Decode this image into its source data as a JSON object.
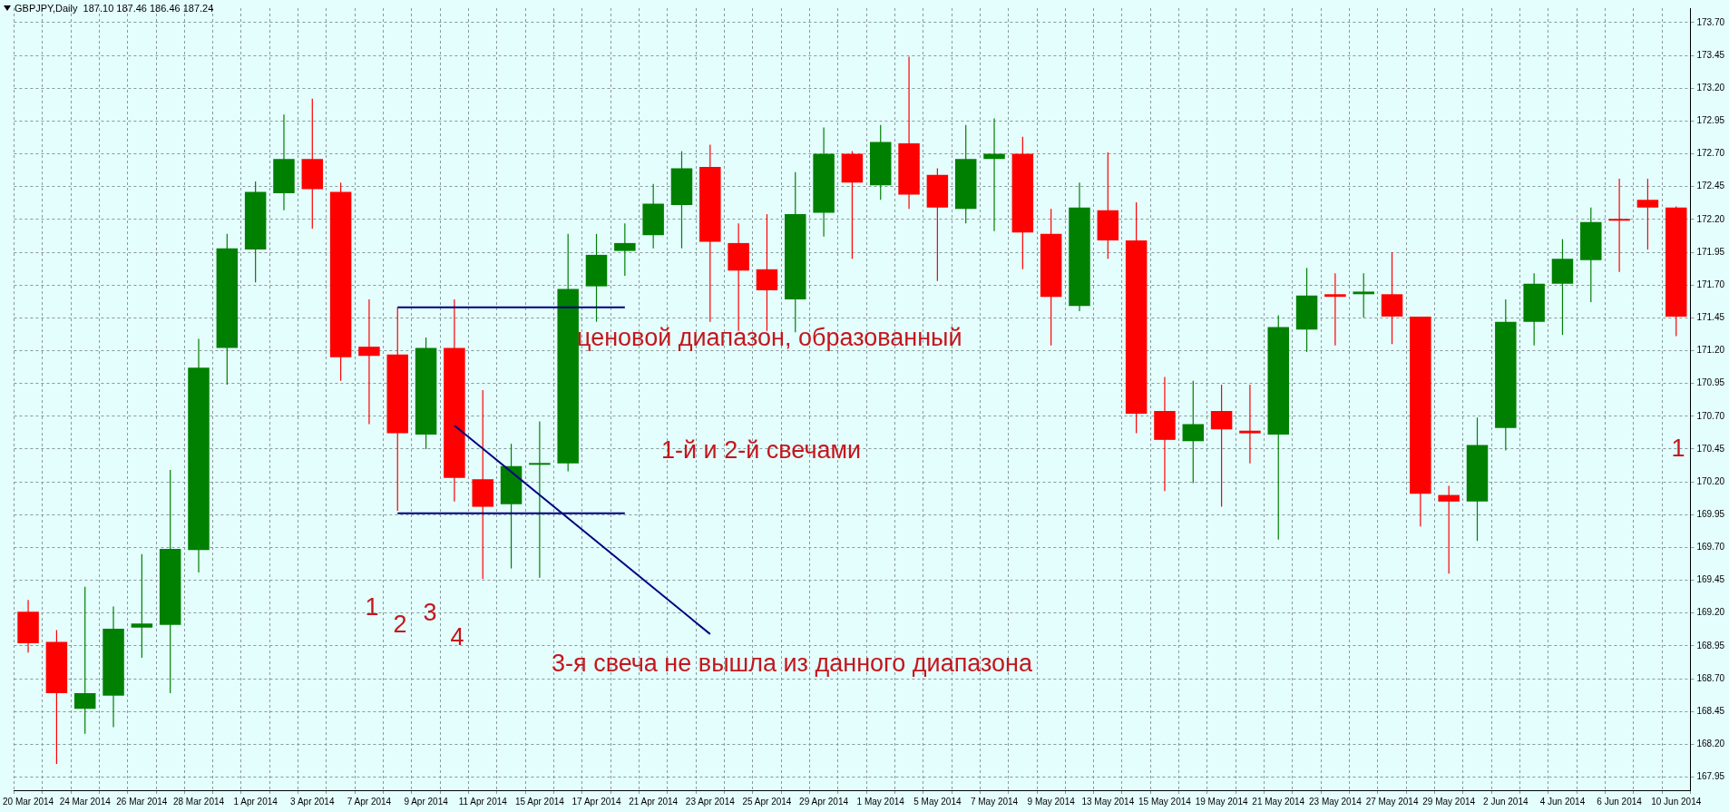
{
  "chart_data": {
    "type": "candlestick",
    "categories": [
      "20 Mar 2014",
      null,
      "24 Mar 2014",
      null,
      "26 Mar 2014",
      null,
      "28 Mar 2014",
      null,
      "1 Apr 2014",
      null,
      "3 Apr 2014",
      null,
      "7 Apr 2014",
      null,
      "9 Apr 2014",
      null,
      "11 Apr 2014",
      null,
      "15 Apr 2014",
      null,
      "17 Apr 2014",
      null,
      "21 Apr 2014",
      null,
      "23 Apr 2014",
      null,
      "25 Apr 2014",
      null,
      "29 Apr 2014",
      null,
      "1 May 2014",
      null,
      "5 May 2014",
      null,
      "7 May 2014",
      null,
      "9 May 2014",
      null,
      "13 May 2014",
      null,
      "15 May 2014",
      null,
      "19 May 2014",
      null,
      "21 May 2014",
      null,
      "23 May 2014",
      null,
      "27 May 2014",
      null,
      "29 May 2014",
      null,
      "2 Jun 2014",
      null,
      "4 Jun 2014",
      null,
      "6 Jun 2014",
      null,
      "10 Jun 2014"
    ],
    "ohlc": [
      [
        169.21,
        169.3,
        168.9,
        168.97
      ],
      [
        168.98,
        169.07,
        168.05,
        168.59
      ],
      [
        168.47,
        169.4,
        168.28,
        168.59
      ],
      [
        168.57,
        169.25,
        168.33,
        169.08
      ],
      [
        169.09,
        169.65,
        168.86,
        169.12
      ],
      [
        169.11,
        170.29,
        168.59,
        169.69
      ],
      [
        169.68,
        171.29,
        169.51,
        171.07
      ],
      [
        171.22,
        172.09,
        170.94,
        171.98
      ],
      [
        171.97,
        172.49,
        171.72,
        172.41
      ],
      [
        172.4,
        173.0,
        172.27,
        172.66
      ],
      [
        172.66,
        173.12,
        172.13,
        172.43
      ],
      [
        172.41,
        172.48,
        170.97,
        171.15
      ],
      [
        171.23,
        171.59,
        170.64,
        171.16
      ],
      [
        171.17,
        171.53,
        169.98,
        170.57
      ],
      [
        170.56,
        171.3,
        170.45,
        171.22
      ],
      [
        171.22,
        171.59,
        170.05,
        170.23
      ],
      [
        170.22,
        170.9,
        169.46,
        170.01
      ],
      [
        170.03,
        170.49,
        169.54,
        170.32
      ],
      [
        170.33,
        170.66,
        169.47,
        170.34
      ],
      [
        170.34,
        172.09,
        170.28,
        171.67
      ],
      [
        171.69,
        172.09,
        171.42,
        171.93
      ],
      [
        171.96,
        172.17,
        171.77,
        172.02
      ],
      [
        172.08,
        172.47,
        171.98,
        172.32
      ],
      [
        172.31,
        172.72,
        171.98,
        172.59
      ],
      [
        172.6,
        172.77,
        171.42,
        172.03
      ],
      [
        172.02,
        172.17,
        171.35,
        171.81
      ],
      [
        171.82,
        172.24,
        171.35,
        171.66
      ],
      [
        171.59,
        172.56,
        171.34,
        172.24
      ],
      [
        172.25,
        172.9,
        172.07,
        172.7
      ],
      [
        172.7,
        172.72,
        171.9,
        172.48
      ],
      [
        172.46,
        172.92,
        172.35,
        172.79
      ],
      [
        172.78,
        173.44,
        172.28,
        172.39
      ],
      [
        172.54,
        172.59,
        171.73,
        172.29
      ],
      [
        172.28,
        172.92,
        172.17,
        172.66
      ],
      [
        172.66,
        172.97,
        172.11,
        172.7
      ],
      [
        172.7,
        172.83,
        171.82,
        172.1
      ],
      [
        172.09,
        172.28,
        171.24,
        171.61
      ],
      [
        171.54,
        172.48,
        171.5,
        172.29
      ],
      [
        172.27,
        172.71,
        171.9,
        172.04
      ],
      [
        172.04,
        172.33,
        170.57,
        170.72
      ],
      [
        170.74,
        171.0,
        170.13,
        170.52
      ],
      [
        170.51,
        170.97,
        170.19,
        170.64
      ],
      [
        170.74,
        170.94,
        170.01,
        170.6
      ],
      [
        170.59,
        170.94,
        170.34,
        170.57
      ],
      [
        170.56,
        171.47,
        169.76,
        171.38
      ],
      [
        171.36,
        171.83,
        171.19,
        171.62
      ],
      [
        171.63,
        171.79,
        171.24,
        171.61
      ],
      [
        171.63,
        171.79,
        171.45,
        171.65
      ],
      [
        171.63,
        171.95,
        171.25,
        171.46
      ],
      [
        171.46,
        171.46,
        169.86,
        170.11
      ],
      [
        170.1,
        170.17,
        169.5,
        170.05
      ],
      [
        170.05,
        170.69,
        169.75,
        170.48
      ],
      [
        170.61,
        171.59,
        170.44,
        171.42
      ],
      [
        171.42,
        171.79,
        171.24,
        171.71
      ],
      [
        171.71,
        172.05,
        171.32,
        171.9
      ],
      [
        171.89,
        172.29,
        171.57,
        172.18
      ],
      [
        172.2,
        172.51,
        171.8,
        172.19
      ],
      [
        172.35,
        172.51,
        171.97,
        172.29
      ],
      [
        172.29,
        172.3,
        171.31,
        171.46
      ]
    ],
    "colors": [
      "#ff0000",
      "#ff0000",
      "#008000",
      "#008000",
      "#008000",
      "#008000",
      "#008000",
      "#008000",
      "#008000",
      "#008000",
      "#ff0000",
      "#ff0000",
      "#ff0000",
      "#ff0000",
      "#008000",
      "#ff0000",
      "#ff0000",
      "#008000",
      "#008000",
      "#008000",
      "#008000",
      "#008000",
      "#008000",
      "#008000",
      "#ff0000",
      "#ff0000",
      "#ff0000",
      "#008000",
      "#008000",
      "#ff0000",
      "#008000",
      "#ff0000",
      "#ff0000",
      "#008000",
      "#008000",
      "#ff0000",
      "#ff0000",
      "#008000",
      "#ff0000",
      "#ff0000",
      "#ff0000",
      "#008000",
      "#ff0000",
      "#ff0000",
      "#008000",
      "#008000",
      "#ff0000",
      "#008000",
      "#ff0000",
      "#ff0000",
      "#ff0000",
      "#008000",
      "#008000",
      "#008000",
      "#008000",
      "#008000",
      "#ff0000",
      "#ff0000",
      "#ff0000"
    ],
    "series": [
      {
        "type": "line",
        "color": "#000080",
        "values": [
          null,
          null,
          null,
          null,
          null,
          null,
          null,
          null,
          null,
          null,
          null,
          null,
          null,
          171.53,
          171.53,
          171.53,
          171.53,
          171.53,
          171.53,
          171.53,
          171.53,
          171.53,
          null,
          null,
          null,
          null,
          null,
          null,
          null,
          null,
          null,
          null,
          null,
          null,
          null,
          null,
          null,
          null,
          null,
          null,
          null,
          null,
          null,
          null,
          null,
          null,
          null,
          null,
          null,
          null,
          null,
          null,
          null,
          null,
          null,
          null,
          null,
          null,
          null
        ]
      },
      {
        "type": "line",
        "color": "#000080",
        "values": [
          null,
          null,
          null,
          null,
          null,
          null,
          null,
          null,
          null,
          null,
          null,
          null,
          null,
          169.96,
          169.96,
          169.96,
          169.96,
          169.96,
          169.96,
          169.96,
          169.96,
          169.96,
          null,
          null,
          null,
          null,
          null,
          null,
          null,
          null,
          null,
          null,
          null,
          null,
          null,
          null,
          null,
          null,
          null,
          null,
          null,
          null,
          null,
          null,
          null,
          null,
          null,
          null,
          null,
          null,
          null,
          null,
          null,
          null,
          null,
          null,
          null,
          null,
          null
        ]
      },
      {
        "type": "line",
        "color": "#000080",
        "values": [
          null,
          null,
          null,
          null,
          null,
          null,
          null,
          null,
          null,
          null,
          null,
          null,
          null,
          null,
          null,
          170.63,
          null,
          null,
          null,
          null,
          null,
          null,
          null,
          null,
          169.04,
          null,
          null,
          null,
          null,
          null,
          null,
          null,
          null,
          null,
          null,
          null,
          null,
          null,
          null,
          null,
          null,
          null,
          null,
          null,
          null,
          null,
          null,
          null,
          null,
          null,
          null,
          null,
          null,
          null,
          null,
          null,
          null,
          null,
          null
        ]
      }
    ],
    "marker": "none",
    "ylim": [
      167.85,
      173.81
    ],
    "yticks": [
      {
        "value": 167.95,
        "label": "167.95"
      },
      {
        "value": 168.2,
        "label": "168.20"
      },
      {
        "value": 168.45,
        "label": "168.45"
      },
      {
        "value": 168.7,
        "label": "168.70"
      },
      {
        "value": 168.95,
        "label": "168.95"
      },
      {
        "value": 169.2,
        "label": "169.20"
      },
      {
        "value": 169.45,
        "label": "169.45"
      },
      {
        "value": 169.7,
        "label": "169.70"
      },
      {
        "value": 169.95,
        "label": "169.95"
      },
      {
        "value": 170.2,
        "label": "170.20"
      },
      {
        "value": 170.45,
        "label": "170.45"
      },
      {
        "value": 170.7,
        "label": "170.70"
      },
      {
        "value": 170.95,
        "label": "170.95"
      },
      {
        "value": 171.2,
        "label": "171.20"
      },
      {
        "value": 171.45,
        "label": "171.45"
      },
      {
        "value": 171.7,
        "label": "171.70"
      },
      {
        "value": 171.95,
        "label": "171.95"
      },
      {
        "value": 172.2,
        "label": "172.20"
      },
      {
        "value": 172.45,
        "label": "172.45"
      },
      {
        "value": 172.7,
        "label": "172.70"
      },
      {
        "value": 172.95,
        "label": "172.95"
      },
      {
        "value": 173.2,
        "label": "173.20"
      },
      {
        "value": 173.45,
        "label": "173.45"
      },
      {
        "value": 173.7,
        "label": "173.70"
      }
    ],
    "grid": true,
    "legend": false,
    "annotations": [
      "GBPJPY,Daily  187.10 187.46 186.46 187.24",
      "ценовой диапазон, образованный",
      "1-й и 2-й свечами",
      "3-я свеча не вышла из данного диапазона",
      "1",
      "2",
      "3",
      "4",
      "1"
    ]
  }
}
